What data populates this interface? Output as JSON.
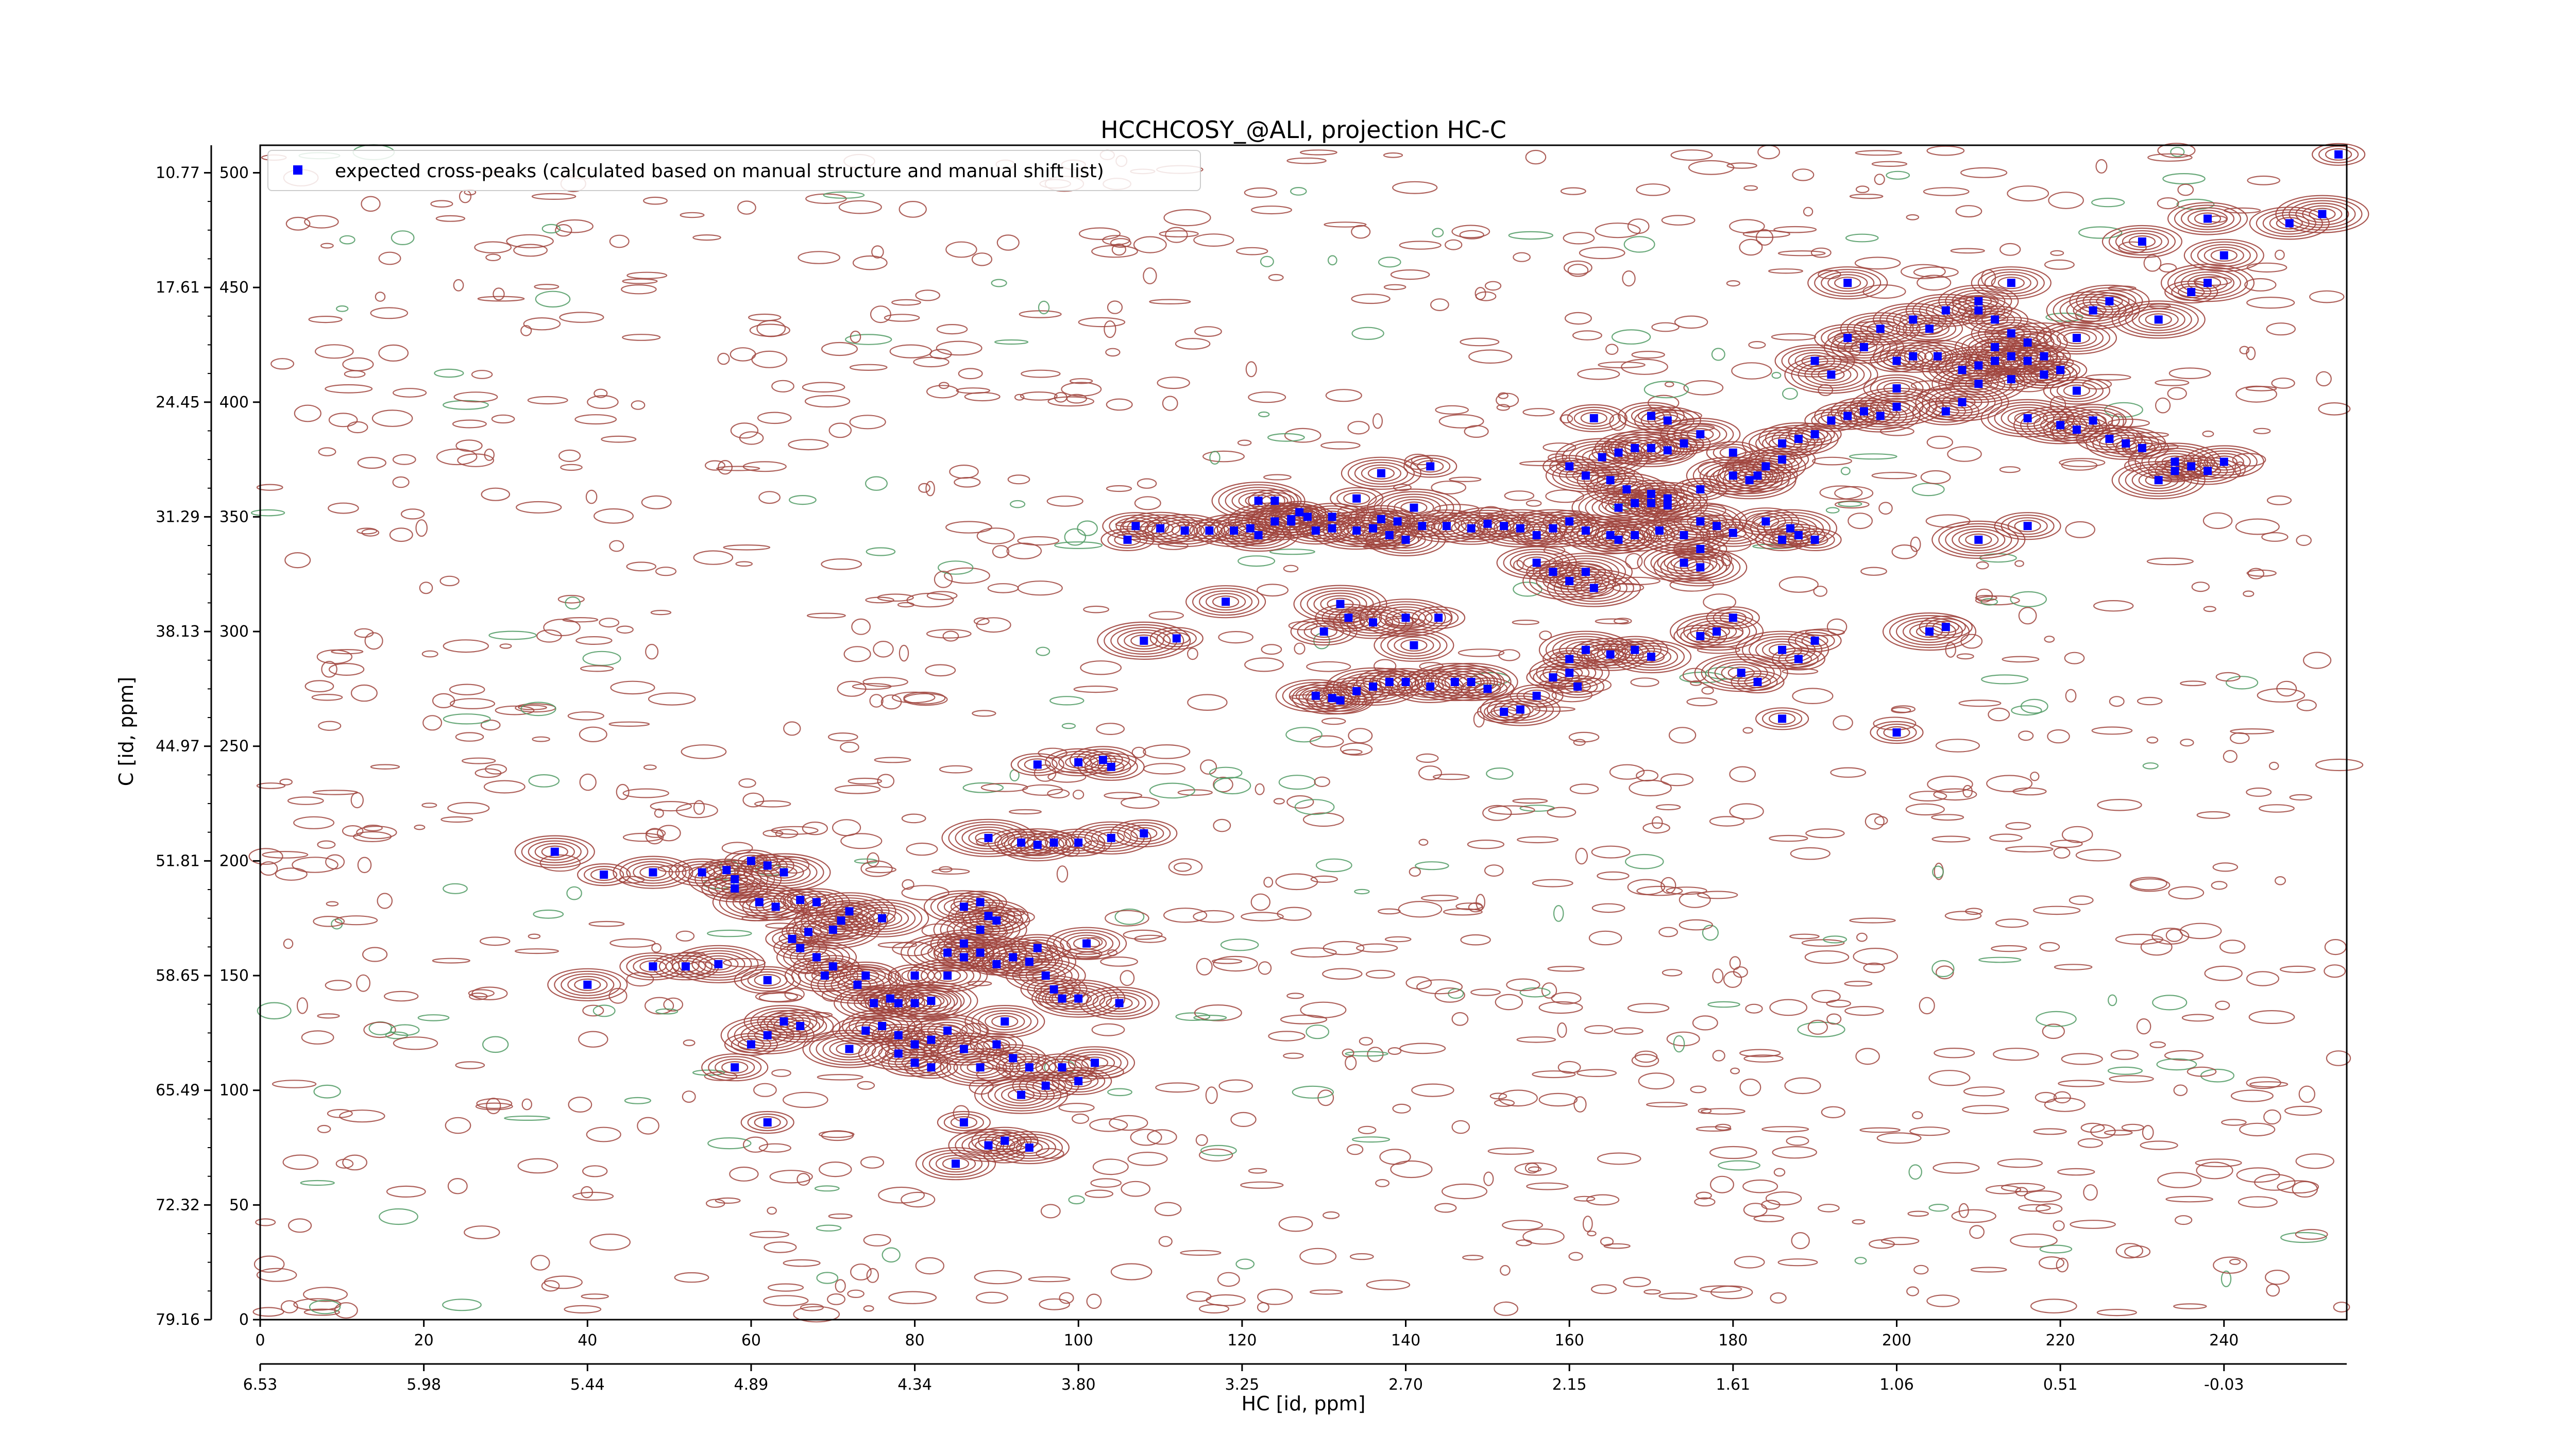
{
  "chart_data": {
    "type": "scatter",
    "title": "HCCHCOSY_@ALI, projection HC-C",
    "xlabel": "HC [id, ppm]",
    "ylabel": "C [id, ppm]",
    "x_index_ticks": [
      "0",
      "20",
      "40",
      "60",
      "80",
      "100",
      "120",
      "140",
      "160",
      "180",
      "200",
      "220",
      "240"
    ],
    "x_ppm_ticks": [
      "6.53",
      "5.98",
      "5.44",
      "4.89",
      "4.34",
      "3.80",
      "3.25",
      "2.70",
      "2.15",
      "1.61",
      "1.06",
      "0.51",
      "-0.03"
    ],
    "y_index_ticks": [
      "0",
      "50",
      "100",
      "150",
      "200",
      "250",
      "300",
      "350",
      "400",
      "450",
      "500"
    ],
    "y_ppm_ticks": [
      "79.16",
      "72.32",
      "65.49",
      "58.65",
      "51.81",
      "44.97",
      "38.13",
      "31.29",
      "24.45",
      "17.61",
      "10.77"
    ],
    "xlim": [
      0,
      255
    ],
    "ylim": [
      0,
      512
    ],
    "legend": {
      "position": "top-left",
      "label": "expected cross-peaks (calculated based on manual structure and manual shift list)"
    },
    "colors": {
      "positive_contour": "#a0453e",
      "negative_contour": "#4f9a63",
      "marker": "#0000ff"
    },
    "series": [
      {
        "name": "expected cross-peaks (calculated based on manual structure and manual shift list)",
        "points": [
          [
            36,
            204
          ],
          [
            42,
            194
          ],
          [
            48,
            195
          ],
          [
            54,
            195
          ],
          [
            57,
            196
          ],
          [
            58,
            192
          ],
          [
            60,
            200
          ],
          [
            62,
            198
          ],
          [
            64,
            195
          ],
          [
            58,
            188
          ],
          [
            61,
            182
          ],
          [
            63,
            180
          ],
          [
            66,
            183
          ],
          [
            68,
            182
          ],
          [
            72,
            178
          ],
          [
            76,
            175
          ],
          [
            70,
            170
          ],
          [
            71,
            174
          ],
          [
            67,
            169
          ],
          [
            65,
            166
          ],
          [
            66,
            162
          ],
          [
            68,
            158
          ],
          [
            70,
            154
          ],
          [
            69,
            150
          ],
          [
            74,
            150
          ],
          [
            73,
            146
          ],
          [
            75,
            138
          ],
          [
            77,
            140
          ],
          [
            78,
            138
          ],
          [
            80,
            138
          ],
          [
            82,
            139
          ],
          [
            40,
            146
          ],
          [
            48,
            154
          ],
          [
            52,
            154
          ],
          [
            56,
            155
          ],
          [
            62,
            148
          ],
          [
            80,
            150
          ],
          [
            84,
            150
          ],
          [
            84,
            160
          ],
          [
            86,
            158
          ],
          [
            88,
            160
          ],
          [
            90,
            155
          ],
          [
            92,
            158
          ],
          [
            94,
            156
          ],
          [
            95,
            162
          ],
          [
            96,
            150
          ],
          [
            97,
            144
          ],
          [
            98,
            140
          ],
          [
            86,
            164
          ],
          [
            88,
            170
          ],
          [
            89,
            176
          ],
          [
            90,
            174
          ],
          [
            86,
            180
          ],
          [
            88,
            182
          ],
          [
            64,
            130
          ],
          [
            66,
            128
          ],
          [
            62,
            124
          ],
          [
            60,
            120
          ],
          [
            58,
            110
          ],
          [
            62,
            86
          ],
          [
            74,
            126
          ],
          [
            76,
            128
          ],
          [
            78,
            124
          ],
          [
            72,
            118
          ],
          [
            78,
            116
          ],
          [
            80,
            120
          ],
          [
            82,
            122
          ],
          [
            84,
            126
          ],
          [
            80,
            112
          ],
          [
            82,
            110
          ],
          [
            86,
            118
          ],
          [
            88,
            110
          ],
          [
            90,
            120
          ],
          [
            91,
            130
          ],
          [
            92,
            114
          ],
          [
            94,
            110
          ],
          [
            96,
            102
          ],
          [
            93,
            98
          ],
          [
            98,
            110
          ],
          [
            100,
            104
          ],
          [
            102,
            112
          ],
          [
            86,
            86
          ],
          [
            89,
            76
          ],
          [
            91,
            78
          ],
          [
            94,
            75
          ],
          [
            85,
            68
          ],
          [
            105,
            138
          ],
          [
            100,
            140
          ],
          [
            101,
            164
          ],
          [
            89,
            210
          ],
          [
            93,
            208
          ],
          [
            95,
            207
          ],
          [
            97,
            208
          ],
          [
            100,
            208
          ],
          [
            104,
            210
          ],
          [
            108,
            212
          ],
          [
            95,
            242
          ],
          [
            100,
            243
          ],
          [
            103,
            244
          ],
          [
            104,
            241
          ],
          [
            108,
            296
          ],
          [
            112,
            297
          ],
          [
            118,
            313
          ],
          [
            107,
            346
          ],
          [
            106,
            340
          ],
          [
            110,
            345
          ],
          [
            113,
            344
          ],
          [
            116,
            344
          ],
          [
            119,
            344
          ],
          [
            121,
            345
          ],
          [
            122,
            342
          ],
          [
            124,
            348
          ],
          [
            126,
            348
          ],
          [
            122,
            357
          ],
          [
            124,
            357
          ],
          [
            127,
            352
          ],
          [
            129,
            344
          ],
          [
            131,
            345
          ],
          [
            134,
            344
          ],
          [
            136,
            345
          ],
          [
            138,
            342
          ],
          [
            140,
            340
          ],
          [
            142,
            346
          ],
          [
            145,
            346
          ],
          [
            148,
            345
          ],
          [
            150,
            347
          ],
          [
            126,
            349
          ],
          [
            128,
            350
          ],
          [
            131,
            350
          ],
          [
            134,
            358
          ],
          [
            137,
            349
          ],
          [
            139,
            348
          ],
          [
            141,
            354
          ],
          [
            143,
            372
          ],
          [
            137,
            369
          ],
          [
            132,
            312
          ],
          [
            133,
            306
          ],
          [
            130,
            300
          ],
          [
            136,
            304
          ],
          [
            140,
            306
          ],
          [
            144,
            306
          ],
          [
            141,
            294
          ],
          [
            129,
            272
          ],
          [
            131,
            271
          ],
          [
            132,
            270
          ],
          [
            134,
            274
          ],
          [
            136,
            276
          ],
          [
            138,
            278
          ],
          [
            140,
            278
          ],
          [
            143,
            276
          ],
          [
            146,
            278
          ],
          [
            148,
            278
          ],
          [
            150,
            275
          ],
          [
            152,
            265
          ],
          [
            154,
            266
          ],
          [
            156,
            272
          ],
          [
            158,
            280
          ],
          [
            160,
            282
          ],
          [
            161,
            276
          ],
          [
            160,
            288
          ],
          [
            162,
            292
          ],
          [
            165,
            290
          ],
          [
            168,
            292
          ],
          [
            170,
            289
          ],
          [
            152,
            346
          ],
          [
            154,
            345
          ],
          [
            156,
            342
          ],
          [
            156,
            330
          ],
          [
            158,
            326
          ],
          [
            160,
            322
          ],
          [
            162,
            326
          ],
          [
            163,
            319
          ],
          [
            158,
            345
          ],
          [
            160,
            348
          ],
          [
            162,
            344
          ],
          [
            165,
            342
          ],
          [
            166,
            340
          ],
          [
            168,
            342
          ],
          [
            171,
            344
          ],
          [
            174,
            342
          ],
          [
            176,
            336
          ],
          [
            166,
            354
          ],
          [
            168,
            356
          ],
          [
            170,
            356
          ],
          [
            172,
            355
          ],
          [
            176,
            348
          ],
          [
            178,
            346
          ],
          [
            180,
            343
          ],
          [
            174,
            330
          ],
          [
            176,
            328
          ],
          [
            184,
            348
          ],
          [
            186,
            340
          ],
          [
            187,
            345
          ],
          [
            188,
            342
          ],
          [
            190,
            340
          ],
          [
            160,
            372
          ],
          [
            162,
            368
          ],
          [
            164,
            376
          ],
          [
            166,
            378
          ],
          [
            168,
            380
          ],
          [
            170,
            380
          ],
          [
            172,
            379
          ],
          [
            163,
            393
          ],
          [
            165,
            366
          ],
          [
            167,
            362
          ],
          [
            170,
            360
          ],
          [
            172,
            358
          ],
          [
            176,
            362
          ],
          [
            180,
            368
          ],
          [
            182,
            366
          ],
          [
            183,
            368
          ],
          [
            184,
            372
          ],
          [
            186,
            375
          ],
          [
            180,
            378
          ],
          [
            176,
            386
          ],
          [
            170,
            394
          ],
          [
            172,
            392
          ],
          [
            174,
            382
          ],
          [
            186,
            382
          ],
          [
            188,
            384
          ],
          [
            190,
            386
          ],
          [
            192,
            392
          ],
          [
            194,
            394
          ],
          [
            196,
            396
          ],
          [
            198,
            394
          ],
          [
            200,
            398
          ],
          [
            200,
            406
          ],
          [
            200,
            418
          ],
          [
            202,
            420
          ],
          [
            205,
            420
          ],
          [
            208,
            414
          ],
          [
            210,
            416
          ],
          [
            212,
            418
          ],
          [
            212,
            424
          ],
          [
            214,
            420
          ],
          [
            214,
            410
          ],
          [
            216,
            418
          ],
          [
            218,
            412
          ],
          [
            220,
            414
          ],
          [
            222,
            405
          ],
          [
            216,
            393
          ],
          [
            220,
            390
          ],
          [
            222,
            388
          ],
          [
            224,
            392
          ],
          [
            226,
            384
          ],
          [
            228,
            382
          ],
          [
            230,
            380
          ],
          [
            234,
            374
          ],
          [
            236,
            372
          ],
          [
            238,
            370
          ],
          [
            240,
            374
          ],
          [
            232,
            366
          ],
          [
            234,
            370
          ],
          [
            210,
            408
          ],
          [
            206,
            396
          ],
          [
            208,
            400
          ],
          [
            190,
            418
          ],
          [
            192,
            412
          ],
          [
            194,
            428
          ],
          [
            196,
            424
          ],
          [
            198,
            432
          ],
          [
            202,
            436
          ],
          [
            204,
            432
          ],
          [
            206,
            440
          ],
          [
            210,
            440
          ],
          [
            212,
            436
          ],
          [
            214,
            430
          ],
          [
            216,
            426
          ],
          [
            218,
            420
          ],
          [
            218,
            412
          ],
          [
            222,
            428
          ],
          [
            224,
            440
          ],
          [
            226,
            444
          ],
          [
            194,
            452
          ],
          [
            210,
            444
          ],
          [
            214,
            452
          ],
          [
            232,
            436
          ],
          [
            236,
            448
          ],
          [
            238,
            452
          ],
          [
            240,
            464
          ],
          [
            248,
            478
          ],
          [
            252,
            482
          ],
          [
            254,
            508
          ],
          [
            230,
            470
          ],
          [
            238,
            480
          ],
          [
            176,
            298
          ],
          [
            178,
            300
          ],
          [
            180,
            306
          ],
          [
            181,
            282
          ],
          [
            183,
            278
          ],
          [
            186,
            262
          ],
          [
            186,
            292
          ],
          [
            188,
            288
          ],
          [
            190,
            296
          ],
          [
            200,
            256
          ],
          [
            204,
            300
          ],
          [
            206,
            302
          ],
          [
            210,
            340
          ],
          [
            216,
            346
          ]
        ]
      }
    ]
  }
}
